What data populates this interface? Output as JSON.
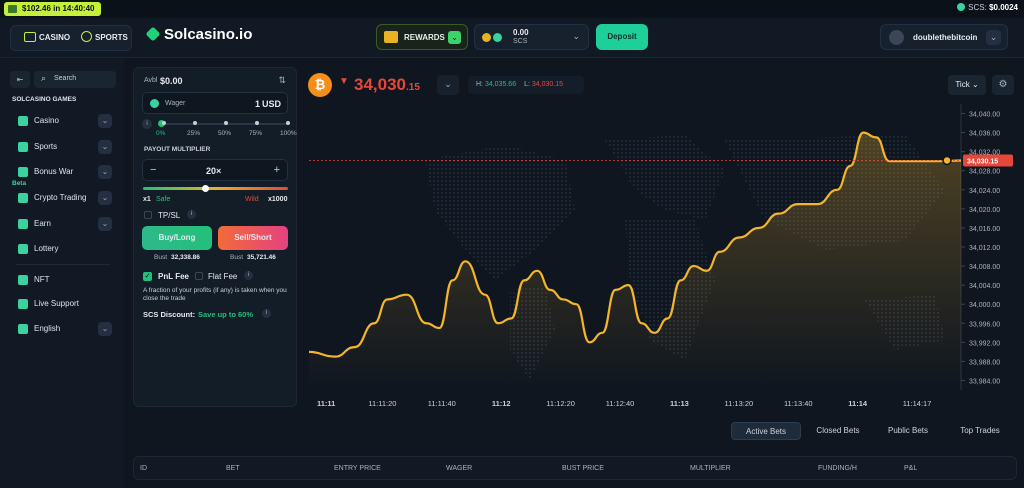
{
  "topstrip": {
    "promo": "$102.46 in 14:40:40",
    "scs_label": "SCS:",
    "scs_value": "$0.0024"
  },
  "header": {
    "nav_casino": "CASINO",
    "nav_sports": "SPORTS",
    "logo": "Solcasino.io",
    "rewards": "REWARDS",
    "wallet_amount": "0.00",
    "wallet_currency": "SCS",
    "deposit": "Deposit",
    "username": "doublethebitcoin"
  },
  "sidebar": {
    "search": "Search",
    "section": "SOLCASINO GAMES",
    "items": [
      {
        "label": "Casino",
        "icon": "casino-icon",
        "chevron": true
      },
      {
        "label": "Sports",
        "icon": "sports-icon",
        "chevron": true
      },
      {
        "label": "Bonus War",
        "icon": "bonus-war-icon",
        "chevron": true
      },
      {
        "label": "Crypto Trading",
        "icon": "crypto-trading-icon",
        "chevron": true,
        "badge": "Beta"
      },
      {
        "label": "Earn",
        "icon": "earn-icon",
        "chevron": true
      },
      {
        "label": "Lottery",
        "icon": "lottery-icon",
        "chevron": false
      },
      {
        "label": "NFT",
        "icon": "nft-icon",
        "chevron": false
      },
      {
        "label": "Live Support",
        "icon": "support-icon",
        "chevron": false
      },
      {
        "label": "English",
        "icon": "flag-icon",
        "chevron": true
      }
    ]
  },
  "bet": {
    "avbl_label": "Avbl",
    "avbl_value": "$0.00",
    "wager_label": "Wager",
    "wager_value": "1",
    "wager_currency": "USD",
    "slider_ticks": [
      "0%",
      "25%",
      "50%",
      "75%",
      "100%"
    ],
    "multiplier_label": "PAYOUT MULTIPLIER",
    "multiplier_value": "20×",
    "minus": "−",
    "plus": "+",
    "min_label": "x1",
    "safe": "Safe",
    "wild": "Wild",
    "max_label": "x1000",
    "tpsl": "TP/SL",
    "buy": "Buy/Long",
    "sell": "Sell/Short",
    "bust_label": "Bust",
    "buy_bust": "32,338.86",
    "sell_bust": "35,721.46",
    "pnl_fee": "PnL Fee",
    "flat_fee": "Flat Fee",
    "fee_note": "A fraction of your profits (if any) is taken when you close the trade",
    "discount_label": "SCS Discount:",
    "discount_value": "Save up to 60%"
  },
  "ticker": {
    "price_main": "34,030",
    "price_dec": ".15",
    "high_label": "H:",
    "high": "34,035.66",
    "low_label": "L:",
    "low": "34,030.15",
    "mode": "Tick"
  },
  "chart_data": {
    "type": "line",
    "x_ticks": [
      "11:11",
      "11:11:20",
      "11:11:40",
      "11:12",
      "11:12:20",
      "11:12:40",
      "11:13",
      "11:13:20",
      "11:13:40",
      "11:14",
      "11:14:17"
    ],
    "y_ticks": [
      33984,
      33988,
      33992,
      33996,
      34000,
      34004,
      34008,
      34012,
      34016,
      34020,
      34024,
      34028,
      34032,
      34036,
      34040
    ],
    "y_tick_labels": [
      "33,984.00",
      "33,988.00",
      "33,992.00",
      "33,996.00",
      "34,000.00",
      "34,004.00",
      "34,008.00",
      "34,012.00",
      "34,016.00",
      "34,020.00",
      "34,024.00",
      "34,028.00",
      "34,032.00",
      "34,036.00",
      "34,040.00"
    ],
    "ylim": [
      33982,
      34042
    ],
    "current_label": "34,030.15",
    "current": 34030.15,
    "x": [
      0,
      0.04,
      0.07,
      0.1,
      0.12,
      0.15,
      0.18,
      0.2,
      0.22,
      0.24,
      0.27,
      0.29,
      0.31,
      0.33,
      0.35,
      0.37,
      0.39,
      0.41,
      0.43,
      0.45,
      0.47,
      0.49,
      0.51,
      0.53,
      0.55,
      0.57,
      0.59,
      0.61,
      0.63,
      0.66,
      0.69,
      0.72,
      0.75,
      0.78,
      0.81,
      0.83,
      0.85,
      0.87,
      0.89,
      0.9,
      0.92,
      0.95,
      0.97,
      1.0
    ],
    "values": [
      33990,
      33989,
      33991,
      33996,
      34001,
      34002,
      33996,
      33995,
      34005,
      34009,
      34002,
      33996,
      33997,
      34005,
      34007,
      34003,
      34001,
      34000,
      33992,
      33994,
      34003,
      34004,
      33996,
      33994,
      33997,
      34005,
      34008,
      34007,
      34011,
      34014,
      34016,
      34019,
      34021,
      34021,
      34024,
      34029,
      34036,
      34035,
      34030,
      34030,
      34030,
      34030,
      34030,
      34030.15
    ]
  },
  "tabs": [
    "Active Bets",
    "Closed Bets",
    "Public Bets",
    "Top Trades"
  ],
  "table_headers": [
    "ID",
    "BET",
    "ENTRY PRICE",
    "WAGER",
    "BUST PRICE",
    "MULTIPLIER",
    "FUNDING/H",
    "P&L"
  ],
  "colors": {
    "accent": "#1fcf9a",
    "line": "#f4b52a",
    "down": "#e5483a",
    "buy": "#22c07a",
    "sell": "#f04b7a"
  }
}
